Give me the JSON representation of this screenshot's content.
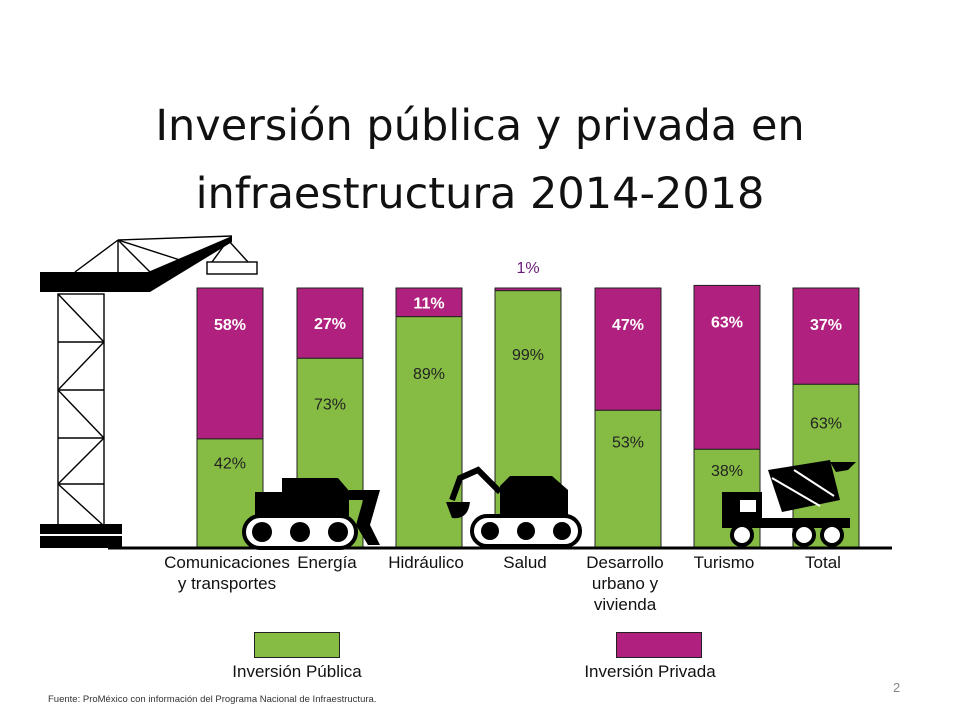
{
  "slide": {
    "title_line1": "Inversión pública y privada en",
    "title_line2": "infraestructura 2014-2018",
    "source": "Fuente: ProMéxico con información del Programa Nacional de Infraestructura.",
    "page_number": "2"
  },
  "chart_data": {
    "type": "bar",
    "stacked": true,
    "percent": true,
    "categories": [
      "Comunicaciones\ny transportes",
      "Energía",
      "Hidráulico",
      "Salud",
      "Desarrollo\nurbano y\nvivienda",
      "Turismo",
      "Total"
    ],
    "series": [
      {
        "name": "Inversión Pública",
        "color": "#86bc44",
        "values": [
          42,
          73,
          89,
          99,
          53,
          38,
          63
        ],
        "labels": [
          "42%",
          "73%",
          "89%",
          "99%",
          "53%",
          "38%",
          "63%"
        ]
      },
      {
        "name": "Inversión Privada",
        "color": "#b0207e",
        "values": [
          58,
          27,
          11,
          1,
          47,
          63,
          37
        ],
        "labels": [
          "58%",
          "27%",
          "11%",
          "1%",
          "47%",
          "63%",
          "37%"
        ]
      }
    ],
    "ylim": [
      0,
      100
    ],
    "legend_position": "bottom",
    "colors": {
      "publica": "#86bc44",
      "privada": "#b0207e",
      "label_on_private": "#ffffff",
      "label_on_public": "#222222",
      "outside_label": "#6a1a78"
    }
  },
  "decorations": [
    "tower-crane-icon",
    "bulldozer-icon",
    "excavator-icon",
    "cement-mixer-truck-icon"
  ]
}
